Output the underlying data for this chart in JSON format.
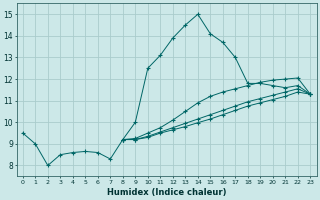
{
  "xlabel": "Humidex (Indice chaleur)",
  "bg_color": "#cce8e8",
  "grid_color": "#aacccc",
  "line_color": "#006666",
  "xlim": [
    -0.5,
    23.5
  ],
  "ylim": [
    7.5,
    15.5
  ],
  "xticks": [
    0,
    1,
    2,
    3,
    4,
    5,
    6,
    7,
    8,
    9,
    10,
    11,
    12,
    13,
    14,
    15,
    16,
    17,
    18,
    19,
    20,
    21,
    22,
    23
  ],
  "yticks": [
    8,
    9,
    10,
    11,
    12,
    13,
    14,
    15
  ],
  "line1_x": [
    0,
    1,
    2,
    3,
    4,
    5,
    6,
    7,
    8,
    9,
    10,
    11,
    12,
    13,
    14,
    15,
    16,
    17,
    18,
    19,
    20,
    21,
    22,
    23
  ],
  "line1_y": [
    9.5,
    9.0,
    8.0,
    8.5,
    8.6,
    8.65,
    8.6,
    8.3,
    9.2,
    10.0,
    12.5,
    13.1,
    13.9,
    14.5,
    15.0,
    14.1,
    13.7,
    13.0,
    11.8,
    11.8,
    11.7,
    11.6,
    11.7,
    11.3
  ],
  "line2_x": [
    8,
    9,
    10,
    11,
    12,
    13,
    14,
    15,
    16,
    17,
    18,
    19,
    20,
    21,
    22,
    23
  ],
  "line2_y": [
    9.2,
    9.25,
    9.5,
    9.75,
    10.1,
    10.5,
    10.9,
    11.2,
    11.4,
    11.55,
    11.7,
    11.85,
    11.95,
    12.0,
    12.05,
    11.3
  ],
  "line3_x": [
    8,
    9,
    10,
    11,
    12,
    13,
    14,
    15,
    16,
    17,
    18,
    19,
    20,
    21,
    22,
    23
  ],
  "line3_y": [
    9.2,
    9.2,
    9.35,
    9.55,
    9.75,
    9.95,
    10.15,
    10.35,
    10.55,
    10.75,
    10.95,
    11.1,
    11.25,
    11.4,
    11.55,
    11.3
  ],
  "line4_x": [
    8,
    9,
    10,
    11,
    12,
    13,
    14,
    15,
    16,
    17,
    18,
    19,
    20,
    21,
    22,
    23
  ],
  "line4_y": [
    9.2,
    9.2,
    9.3,
    9.5,
    9.65,
    9.8,
    9.98,
    10.15,
    10.35,
    10.55,
    10.75,
    10.9,
    11.05,
    11.2,
    11.4,
    11.3
  ]
}
